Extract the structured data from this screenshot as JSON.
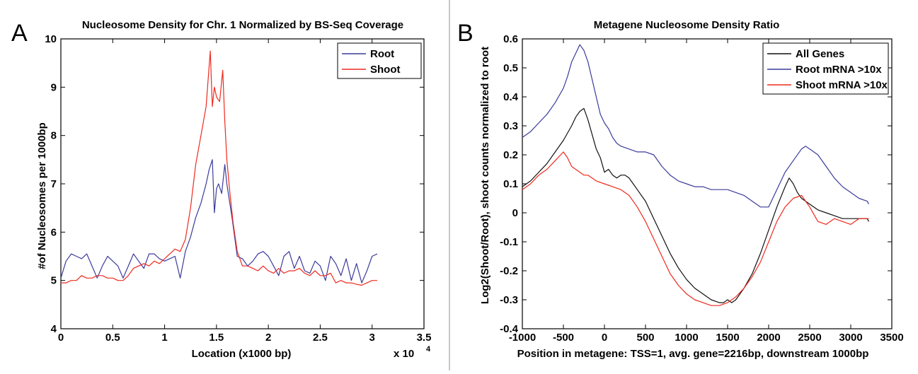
{
  "chart_data": [
    {
      "panel": "A",
      "type": "line",
      "title": "Nucleosome Density for Chr. 1 Normalized by BS-Seq Coverage",
      "xlabel": "Location (x1000 bp)",
      "ylabel": "#of Nucleosomes per 1000bp",
      "x_multiplier": "x 10",
      "x_multiplier_exp": "4",
      "xlim": [
        0,
        3.5
      ],
      "ylim": [
        4,
        10
      ],
      "xticks": [
        0,
        0.5,
        1,
        1.5,
        2,
        2.5,
        3,
        3.5
      ],
      "xtick_labels": [
        "0",
        "0.5",
        "1",
        "1.5",
        "2",
        "2.5",
        "3",
        "3.5"
      ],
      "yticks": [
        4,
        5,
        6,
        7,
        8,
        9,
        10
      ],
      "ytick_labels": [
        "4",
        "5",
        "6",
        "7",
        "8",
        "9",
        "10"
      ],
      "legend_position": "top-right",
      "series": [
        {
          "name": "Root",
          "color": "#3b3b9c",
          "x": [
            0,
            0.05,
            0.1,
            0.15,
            0.2,
            0.25,
            0.3,
            0.35,
            0.4,
            0.45,
            0.5,
            0.55,
            0.6,
            0.65,
            0.7,
            0.75,
            0.8,
            0.85,
            0.9,
            0.95,
            1.0,
            1.05,
            1.1,
            1.15,
            1.2,
            1.25,
            1.3,
            1.35,
            1.4,
            1.43,
            1.46,
            1.48,
            1.5,
            1.52,
            1.55,
            1.58,
            1.6,
            1.65,
            1.7,
            1.75,
            1.8,
            1.85,
            1.9,
            1.95,
            2.0,
            2.05,
            2.1,
            2.15,
            2.2,
            2.25,
            2.3,
            2.35,
            2.4,
            2.45,
            2.5,
            2.55,
            2.6,
            2.65,
            2.7,
            2.75,
            2.8,
            2.85,
            2.9,
            2.95,
            3.0,
            3.05
          ],
          "values": [
            5.05,
            5.4,
            5.55,
            5.5,
            5.45,
            5.55,
            5.3,
            5.05,
            5.3,
            5.5,
            5.4,
            5.3,
            5.05,
            5.3,
            5.55,
            5.4,
            5.25,
            5.55,
            5.55,
            5.45,
            5.4,
            5.45,
            5.5,
            5.05,
            5.6,
            5.9,
            6.3,
            6.6,
            7.0,
            7.3,
            7.5,
            6.4,
            6.9,
            7.0,
            6.8,
            7.4,
            7.0,
            6.3,
            5.5,
            5.45,
            5.3,
            5.4,
            5.55,
            5.6,
            5.5,
            5.3,
            5.1,
            5.5,
            5.6,
            5.25,
            5.5,
            5.2,
            5.15,
            5.4,
            5.3,
            5.0,
            5.5,
            5.35,
            5.1,
            5.45,
            5.0,
            5.35,
            4.95,
            5.2,
            5.5,
            5.55
          ]
        },
        {
          "name": "Shoot",
          "color": "#ee2a1f",
          "x": [
            0,
            0.05,
            0.1,
            0.15,
            0.2,
            0.25,
            0.3,
            0.35,
            0.4,
            0.45,
            0.5,
            0.55,
            0.6,
            0.65,
            0.7,
            0.75,
            0.8,
            0.85,
            0.9,
            0.95,
            1.0,
            1.05,
            1.1,
            1.15,
            1.2,
            1.25,
            1.3,
            1.35,
            1.4,
            1.44,
            1.46,
            1.48,
            1.5,
            1.53,
            1.56,
            1.58,
            1.6,
            1.63,
            1.66,
            1.7,
            1.75,
            1.8,
            1.85,
            1.9,
            1.95,
            2.0,
            2.05,
            2.1,
            2.15,
            2.2,
            2.25,
            2.3,
            2.35,
            2.4,
            2.45,
            2.5,
            2.55,
            2.6,
            2.65,
            2.7,
            2.75,
            2.8,
            2.85,
            2.9,
            2.95,
            3.0,
            3.05
          ],
          "values": [
            4.95,
            4.95,
            5.0,
            5.0,
            5.1,
            5.05,
            5.05,
            5.1,
            5.1,
            5.05,
            5.05,
            5.0,
            5.0,
            5.1,
            5.25,
            5.3,
            5.35,
            5.3,
            5.4,
            5.35,
            5.45,
            5.55,
            5.65,
            5.6,
            5.85,
            6.5,
            7.4,
            8.0,
            8.6,
            9.75,
            8.6,
            9.0,
            8.8,
            8.7,
            9.35,
            8.3,
            7.5,
            6.8,
            6.2,
            5.6,
            5.3,
            5.3,
            5.25,
            5.2,
            5.3,
            5.2,
            5.15,
            5.25,
            5.15,
            5.2,
            5.2,
            5.25,
            5.15,
            5.1,
            5.2,
            5.1,
            5.1,
            5.15,
            4.95,
            5.0,
            4.95,
            4.95,
            4.92,
            4.9,
            4.95,
            5.0,
            5.0
          ]
        }
      ]
    },
    {
      "panel": "B",
      "type": "line",
      "title": "Metagene Nucleosome Density Ratio",
      "xlabel": "Position in metagene: TSS=1, avg. gene=2216bp, downstream 1000bp",
      "ylabel": "Log2(Shoot/Root), shoot counts normalized to root",
      "xlim": [
        -1000,
        3500
      ],
      "ylim": [
        -0.4,
        0.6
      ],
      "xticks": [
        -1000,
        -500,
        0,
        500,
        1000,
        1500,
        2000,
        2500,
        3000,
        3500
      ],
      "xtick_labels": [
        "-1000",
        "-500",
        "0",
        "500",
        "1000",
        "1500",
        "2000",
        "2500",
        "3000",
        "3500"
      ],
      "yticks": [
        -0.4,
        -0.3,
        -0.2,
        -0.1,
        0,
        0.1,
        0.2,
        0.3,
        0.4,
        0.5,
        0.6
      ],
      "ytick_labels": [
        "-0.4",
        "-0.3",
        "-0.2",
        "-0.1",
        "0",
        "0.1",
        "0.2",
        "0.3",
        "0.4",
        "0.5",
        "0.6"
      ],
      "legend_position": "top-right",
      "series": [
        {
          "name": "All Genes",
          "color": "#111111",
          "x": [
            -1000,
            -900,
            -800,
            -700,
            -600,
            -500,
            -400,
            -350,
            -300,
            -250,
            -200,
            -150,
            -100,
            -50,
            0,
            50,
            100,
            150,
            200,
            250,
            300,
            350,
            400,
            500,
            600,
            700,
            800,
            900,
            1000,
            1100,
            1200,
            1300,
            1400,
            1450,
            1500,
            1550,
            1600,
            1700,
            1800,
            1900,
            2000,
            2100,
            2200,
            2250,
            2300,
            2350,
            2400,
            2500,
            2600,
            2700,
            2800,
            2900,
            3000,
            3100,
            3200,
            3220
          ],
          "values": [
            0.09,
            0.11,
            0.14,
            0.17,
            0.21,
            0.25,
            0.3,
            0.33,
            0.35,
            0.36,
            0.32,
            0.27,
            0.22,
            0.19,
            0.14,
            0.15,
            0.13,
            0.12,
            0.13,
            0.13,
            0.12,
            0.1,
            0.08,
            0.04,
            -0.02,
            -0.08,
            -0.14,
            -0.19,
            -0.23,
            -0.26,
            -0.28,
            -0.3,
            -0.31,
            -0.31,
            -0.3,
            -0.31,
            -0.3,
            -0.26,
            -0.21,
            -0.14,
            -0.06,
            0.02,
            0.09,
            0.12,
            0.1,
            0.07,
            0.05,
            0.03,
            0.01,
            0.0,
            -0.01,
            -0.02,
            -0.02,
            -0.02,
            -0.02,
            -0.03
          ]
        },
        {
          "name": "Root mRNA >10x",
          "color": "#3b3b9c",
          "x": [
            -1000,
            -900,
            -800,
            -700,
            -600,
            -500,
            -450,
            -400,
            -350,
            -300,
            -250,
            -200,
            -150,
            -100,
            -50,
            0,
            50,
            100,
            150,
            200,
            300,
            400,
            500,
            600,
            700,
            800,
            900,
            1000,
            1100,
            1200,
            1300,
            1400,
            1500,
            1600,
            1700,
            1800,
            1900,
            2000,
            2100,
            2200,
            2300,
            2400,
            2450,
            2500,
            2600,
            2700,
            2800,
            2900,
            3000,
            3100,
            3200,
            3220
          ],
          "values": [
            0.26,
            0.28,
            0.31,
            0.34,
            0.38,
            0.43,
            0.47,
            0.52,
            0.55,
            0.58,
            0.56,
            0.52,
            0.46,
            0.4,
            0.34,
            0.31,
            0.29,
            0.26,
            0.24,
            0.23,
            0.22,
            0.21,
            0.21,
            0.2,
            0.16,
            0.13,
            0.11,
            0.1,
            0.09,
            0.09,
            0.08,
            0.08,
            0.08,
            0.07,
            0.06,
            0.04,
            0.02,
            0.02,
            0.08,
            0.14,
            0.18,
            0.22,
            0.23,
            0.22,
            0.2,
            0.16,
            0.12,
            0.09,
            0.07,
            0.05,
            0.04,
            0.03
          ]
        },
        {
          "name": "Shoot mRNA >10x",
          "color": "#ee2a1f",
          "x": [
            -1000,
            -900,
            -800,
            -700,
            -600,
            -500,
            -450,
            -400,
            -350,
            -300,
            -250,
            -200,
            -100,
            0,
            100,
            200,
            300,
            400,
            500,
            600,
            700,
            800,
            900,
            1000,
            1100,
            1200,
            1300,
            1400,
            1500,
            1600,
            1700,
            1800,
            1900,
            2000,
            2100,
            2200,
            2300,
            2400,
            2500,
            2600,
            2700,
            2800,
            2900,
            3000,
            3100,
            3200,
            3220
          ],
          "values": [
            0.08,
            0.1,
            0.13,
            0.15,
            0.18,
            0.21,
            0.19,
            0.16,
            0.15,
            0.14,
            0.13,
            0.13,
            0.11,
            0.1,
            0.09,
            0.08,
            0.06,
            0.02,
            -0.03,
            -0.09,
            -0.15,
            -0.21,
            -0.25,
            -0.28,
            -0.3,
            -0.31,
            -0.32,
            -0.32,
            -0.31,
            -0.29,
            -0.26,
            -0.22,
            -0.17,
            -0.1,
            -0.03,
            0.02,
            0.05,
            0.06,
            0.02,
            -0.03,
            -0.04,
            -0.02,
            -0.03,
            -0.04,
            -0.02,
            -0.02,
            -0.02
          ]
        }
      ]
    }
  ]
}
